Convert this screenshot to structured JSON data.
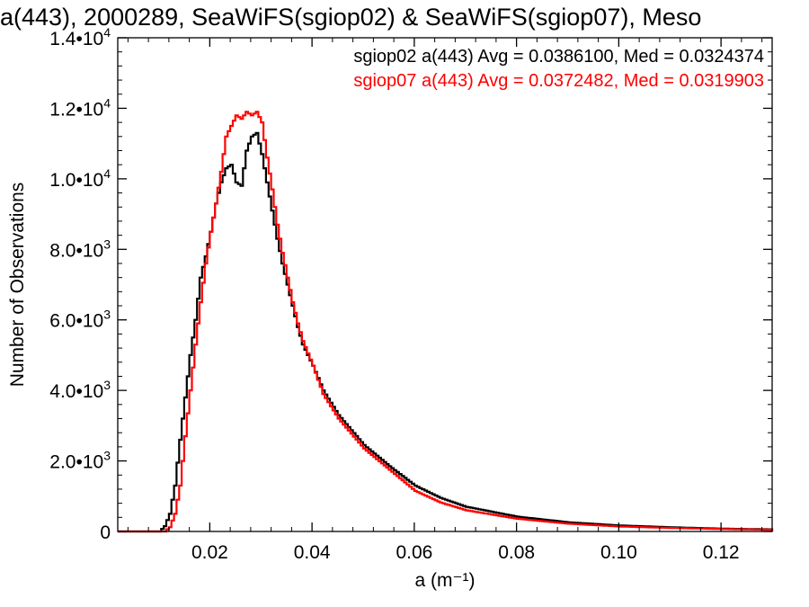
{
  "chart_data": {
    "type": "line",
    "title": "a(443), 2000289, SeaWiFS(sgiop02) & SeaWiFS(sgiop07), Meso",
    "xlabel": "a (m⁻¹)",
    "ylabel": "Number of Observations",
    "xlim": [
      0.002,
      0.13
    ],
    "ylim": [
      0,
      14000
    ],
    "x_ticks": [
      {
        "value": 0.02,
        "label": "0.02"
      },
      {
        "value": 0.04,
        "label": "0.04"
      },
      {
        "value": 0.06,
        "label": "0.06"
      },
      {
        "value": 0.08,
        "label": "0.08"
      },
      {
        "value": 0.1,
        "label": "0.10"
      },
      {
        "value": 0.12,
        "label": "0.12"
      }
    ],
    "y_ticks": [
      {
        "value": 0,
        "mantissa": "0",
        "exponent": ""
      },
      {
        "value": 2000,
        "mantissa": "2.0•10",
        "exponent": "3"
      },
      {
        "value": 4000,
        "mantissa": "4.0•10",
        "exponent": "3"
      },
      {
        "value": 6000,
        "mantissa": "6.0•10",
        "exponent": "3"
      },
      {
        "value": 8000,
        "mantissa": "8.0•10",
        "exponent": "3"
      },
      {
        "value": 10000,
        "mantissa": "1.0•10",
        "exponent": "4"
      },
      {
        "value": 12000,
        "mantissa": "1.2•10",
        "exponent": "4"
      },
      {
        "value": 14000,
        "mantissa": "1.4•10",
        "exponent": "4"
      }
    ],
    "grid": false,
    "legend_placement": "top-right",
    "series": [
      {
        "name": "sgiop02",
        "legend": "sgiop02 a(443) Avg = 0.0386100, Med = 0.0324374",
        "color": "#000000",
        "x": [
          0.002,
          0.01,
          0.011,
          0.012,
          0.013,
          0.014,
          0.015,
          0.016,
          0.017,
          0.018,
          0.019,
          0.02,
          0.021,
          0.022,
          0.023,
          0.024,
          0.025,
          0.026,
          0.027,
          0.028,
          0.029,
          0.03,
          0.031,
          0.032,
          0.033,
          0.034,
          0.035,
          0.036,
          0.037,
          0.038,
          0.04,
          0.042,
          0.045,
          0.05,
          0.055,
          0.06,
          0.065,
          0.07,
          0.08,
          0.09,
          0.1,
          0.11,
          0.12,
          0.13
        ],
        "y": [
          0,
          0,
          150,
          500,
          1300,
          2600,
          3800,
          5000,
          6000,
          7200,
          7800,
          8500,
          9300,
          9900,
          10300,
          10400,
          9900,
          9800,
          10800,
          11200,
          11300,
          10700,
          9900,
          9100,
          8300,
          7600,
          7000,
          6400,
          5800,
          5300,
          4700,
          4000,
          3300,
          2450,
          1850,
          1300,
          950,
          700,
          420,
          260,
          170,
          120,
          80,
          60
        ]
      },
      {
        "name": "sgiop07",
        "legend": "sgiop07 a(443) Avg = 0.0372482, Med = 0.0319903",
        "color": "#ff0000",
        "x": [
          0.002,
          0.011,
          0.012,
          0.013,
          0.014,
          0.015,
          0.016,
          0.017,
          0.018,
          0.019,
          0.02,
          0.021,
          0.022,
          0.023,
          0.024,
          0.025,
          0.026,
          0.027,
          0.028,
          0.029,
          0.03,
          0.031,
          0.032,
          0.033,
          0.034,
          0.035,
          0.036,
          0.037,
          0.038,
          0.04,
          0.042,
          0.045,
          0.05,
          0.055,
          0.06,
          0.065,
          0.07,
          0.08,
          0.09,
          0.1,
          0.11,
          0.12,
          0.13
        ],
        "y": [
          0,
          0,
          120,
          500,
          1300,
          2700,
          4000,
          5300,
          6500,
          7600,
          8500,
          9300,
          10200,
          11200,
          11500,
          11800,
          11700,
          11900,
          11800,
          11900,
          11600,
          10600,
          9700,
          8700,
          7900,
          7200,
          6500,
          5900,
          5400,
          4700,
          3900,
          3200,
          2350,
          1750,
          1150,
          820,
          600,
          360,
          220,
          140,
          100,
          70,
          50
        ]
      }
    ]
  }
}
